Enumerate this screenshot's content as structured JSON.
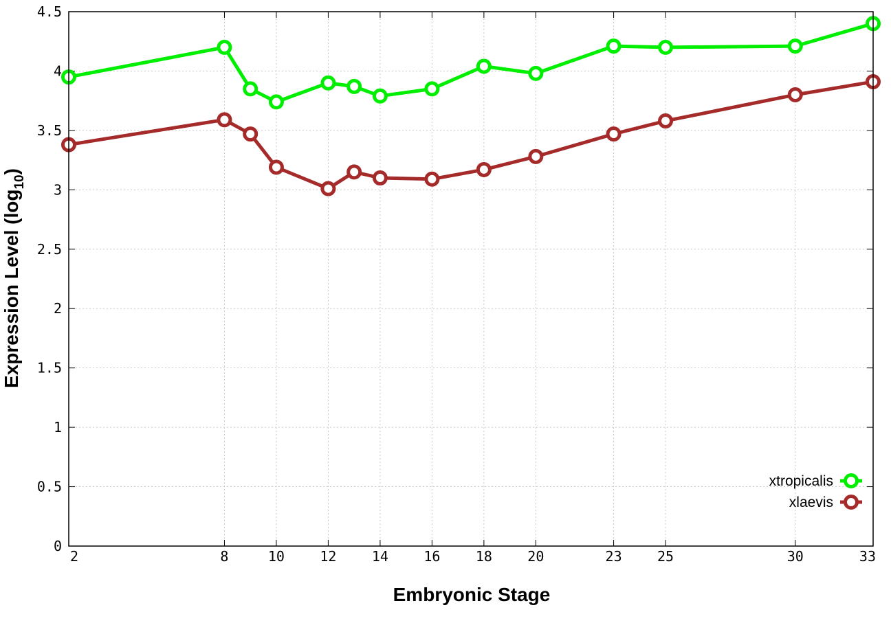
{
  "chart_data": {
    "type": "line",
    "xlabel": "Embryonic Stage",
    "ylabel_main": "Expression Level (log",
    "ylabel_sub": "10",
    "ylabel_close": ")",
    "x": [
      2,
      8,
      9,
      10,
      12,
      13,
      14,
      16,
      18,
      20,
      23,
      25,
      30,
      33
    ],
    "x_ticks": [
      2,
      8,
      10,
      12,
      14,
      16,
      18,
      20,
      23,
      25,
      30,
      33
    ],
    "y_ticks": [
      "0",
      "0.5",
      "1",
      "1.5",
      "2",
      "2.5",
      "3",
      "3.5",
      "4",
      "4.5"
    ],
    "xlim": [
      2,
      33
    ],
    "ylim": [
      0,
      4.5
    ],
    "grid": true,
    "legend_position": "bottom-right",
    "series": [
      {
        "name": "xtropicalis",
        "color": "#00ee00",
        "values": [
          3.95,
          4.2,
          3.85,
          3.74,
          3.9,
          3.87,
          3.79,
          3.85,
          4.04,
          3.98,
          4.21,
          4.2,
          4.21,
          4.4
        ]
      },
      {
        "name": "xlaevis",
        "color": "#a52a2a",
        "values": [
          3.38,
          3.59,
          3.47,
          3.19,
          3.01,
          3.15,
          3.1,
          3.09,
          3.17,
          3.28,
          3.47,
          3.58,
          3.8,
          3.91
        ]
      }
    ]
  }
}
